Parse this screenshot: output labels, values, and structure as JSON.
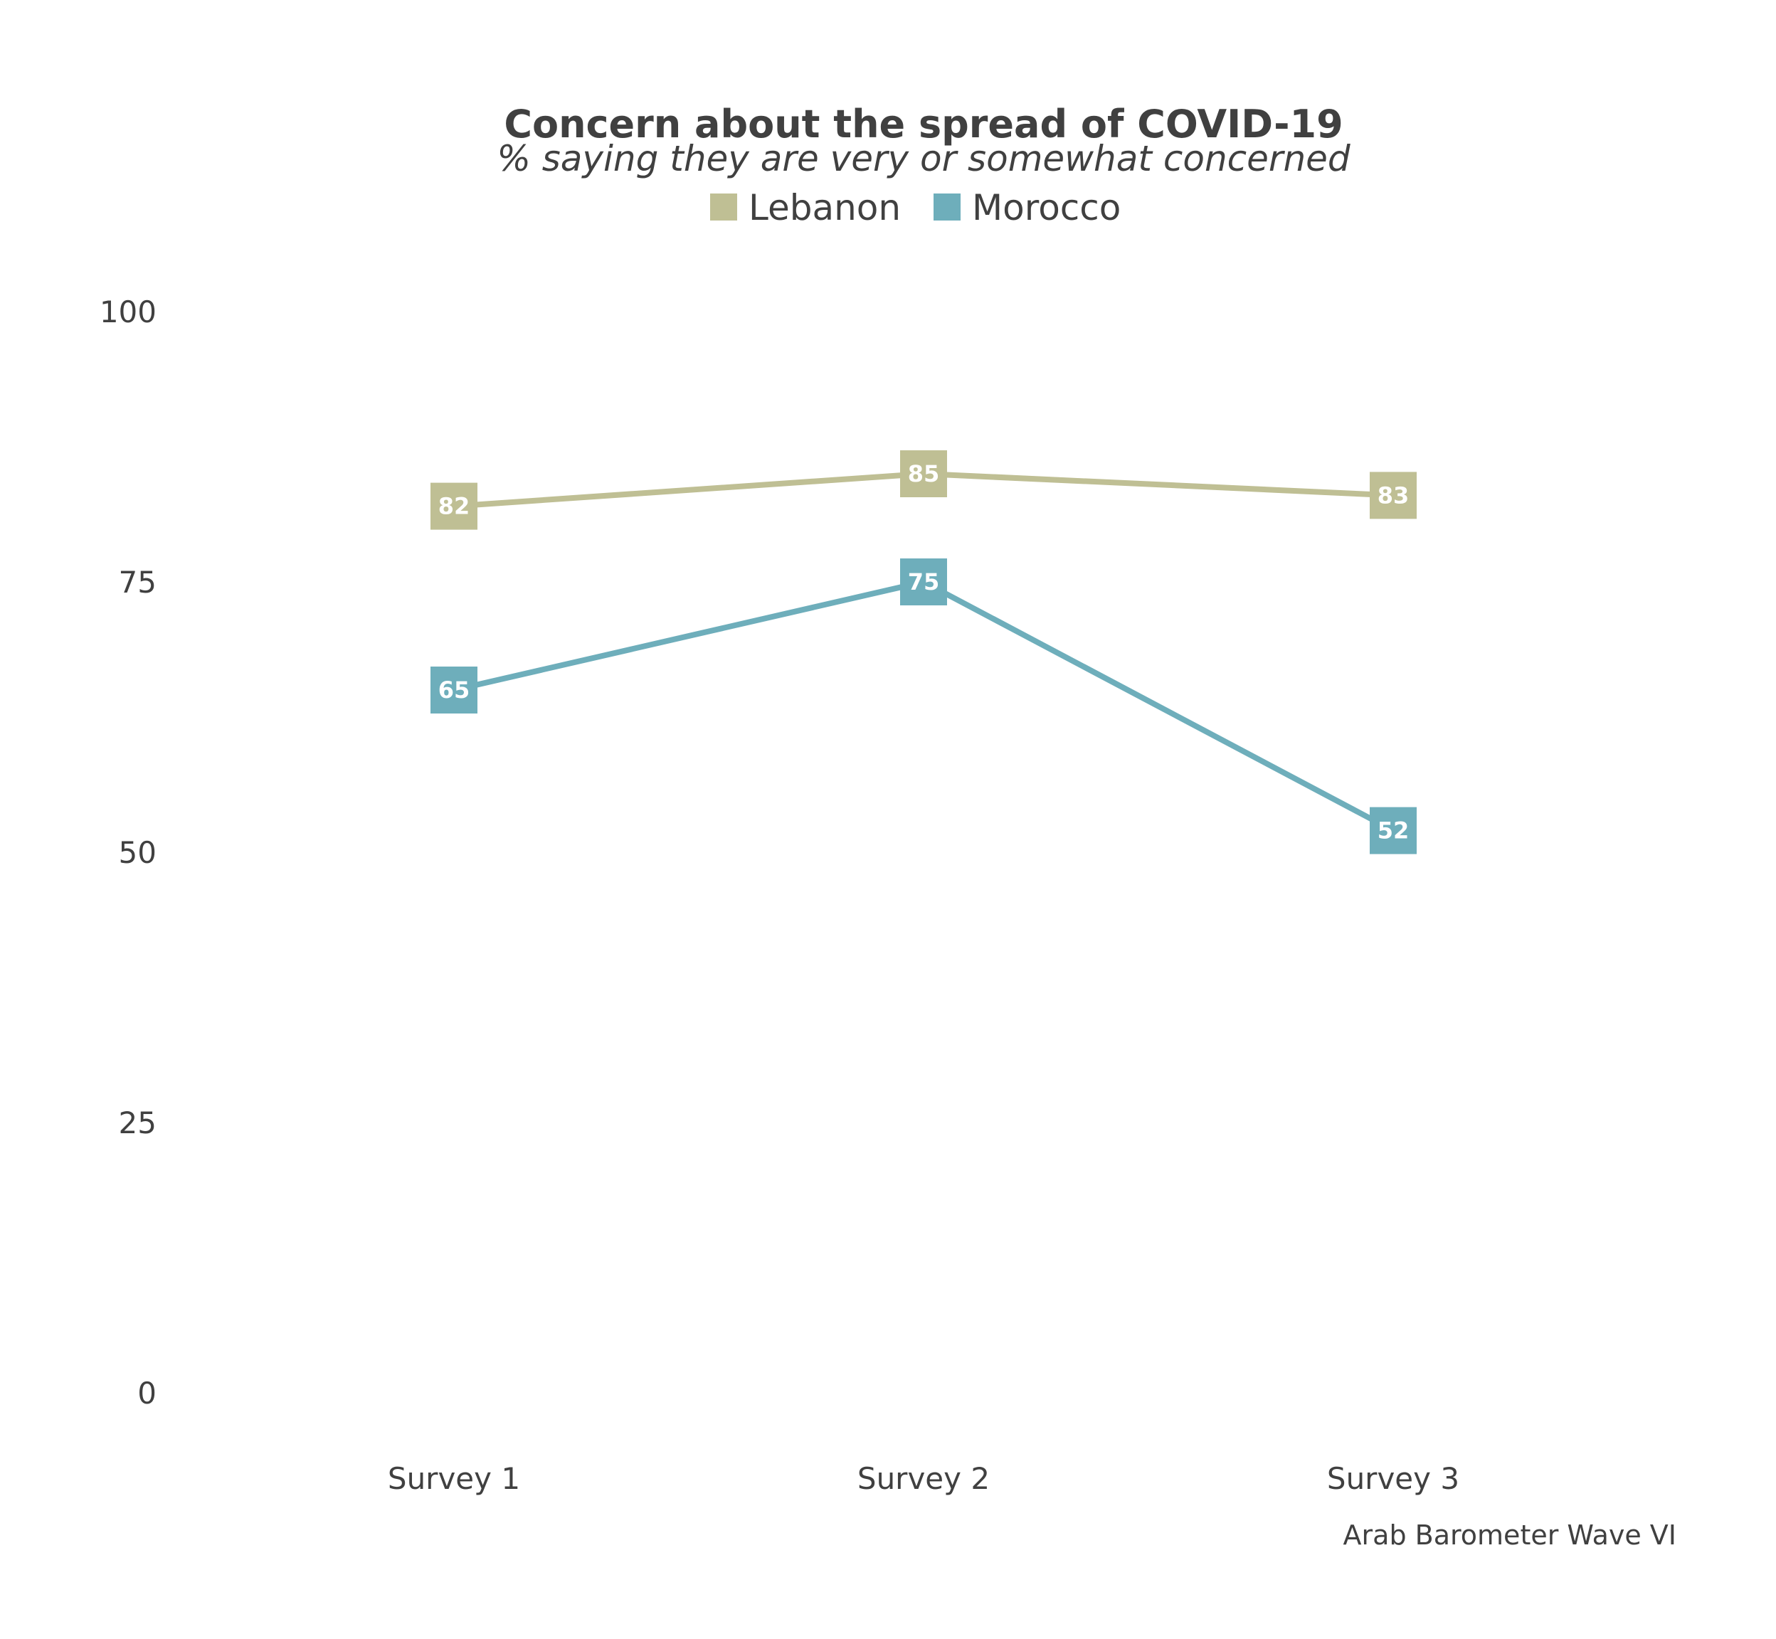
{
  "chart_data": {
    "type": "line",
    "title": "Concern about the spread of COVID-19",
    "subtitle": "% saying they are very or somewhat concerned",
    "categories": [
      "Survey 1",
      "Survey 2",
      "Survey 3"
    ],
    "series": [
      {
        "name": "Lebanon",
        "color": "#bfbf94",
        "values": [
          82,
          85,
          83
        ]
      },
      {
        "name": "Morocco",
        "color": "#6eaebb",
        "values": [
          65,
          75,
          52
        ]
      }
    ],
    "yticks": [
      "0",
      "25",
      "50",
      "75",
      "100"
    ],
    "ylim": [
      0,
      100
    ],
    "legend_position": "top",
    "grid": false,
    "caption": "Arab Barometer Wave VI"
  }
}
